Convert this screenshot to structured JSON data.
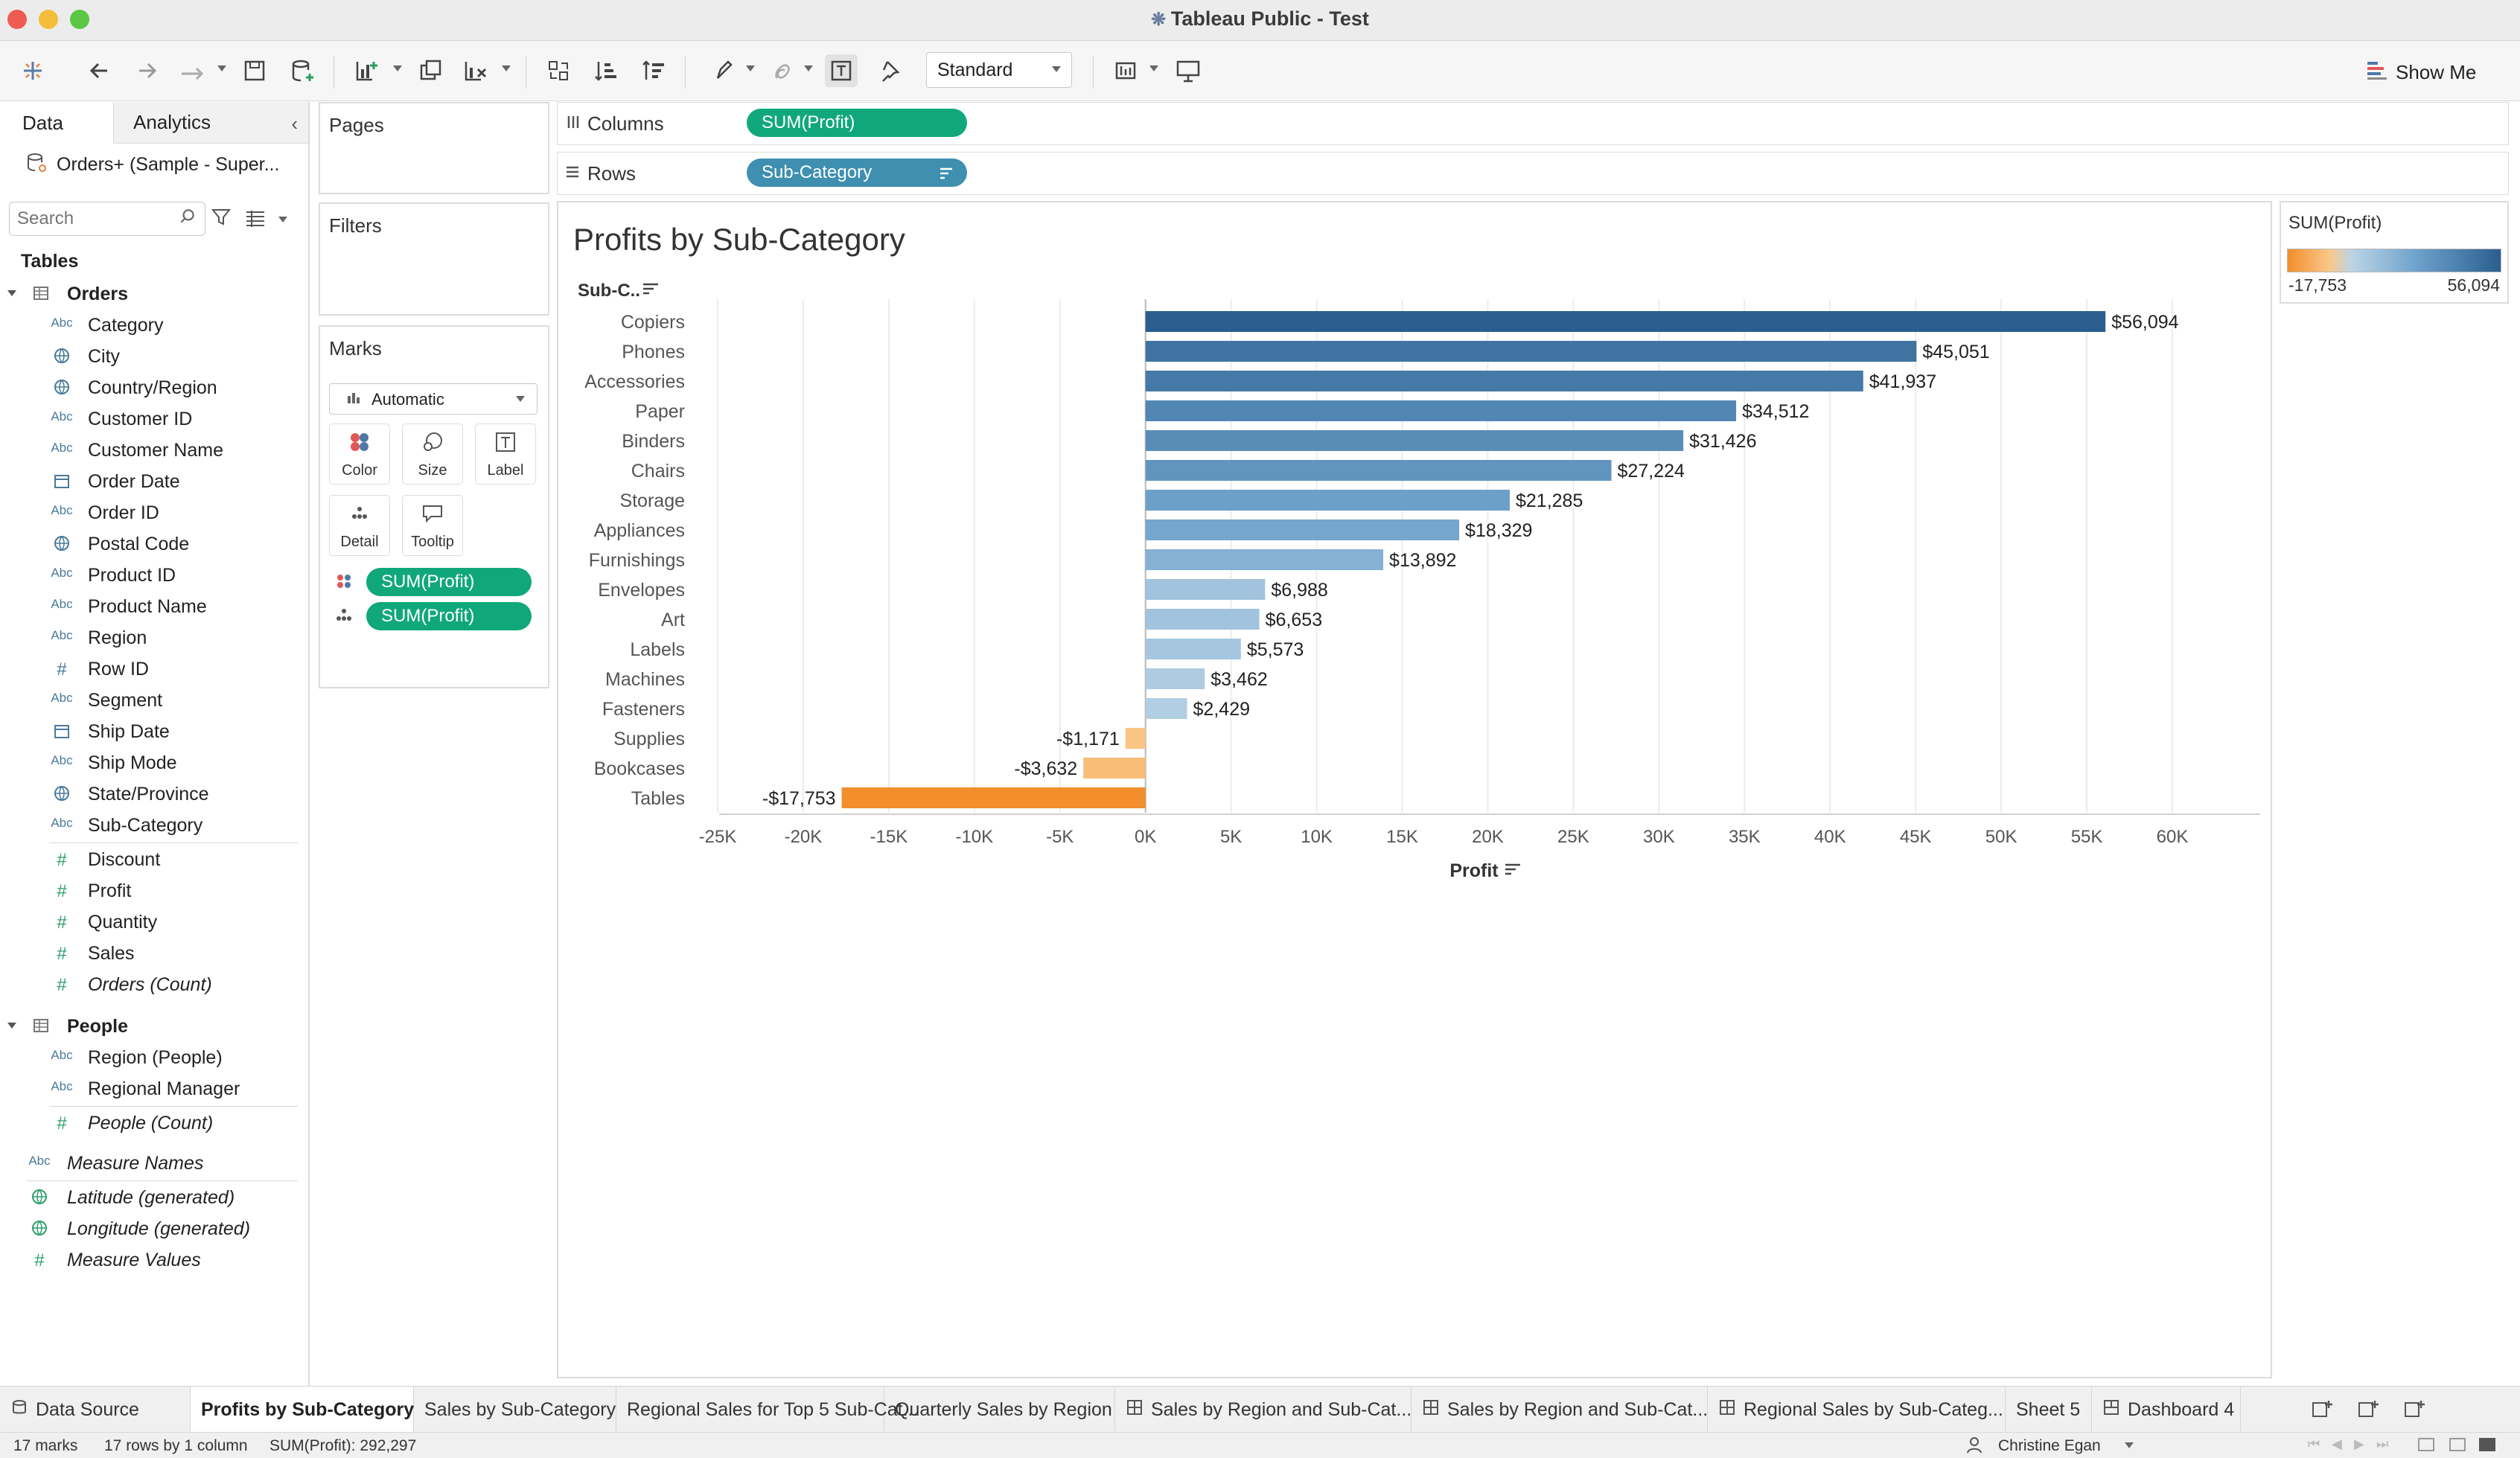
{
  "window": {
    "title": "Tableau Public - Test"
  },
  "toolbar": {
    "mark_size_select": "Standard",
    "show_me_label": "Show Me"
  },
  "left_pane": {
    "tab_data": "Data",
    "tab_analytics": "Analytics",
    "datasource": "Orders+ (Sample - Super...",
    "search_placeholder": "Search",
    "tables_heading": "Tables",
    "orders_table": "Orders",
    "orders_dimensions": [
      {
        "name": "Category",
        "type": "abc"
      },
      {
        "name": "City",
        "type": "geo"
      },
      {
        "name": "Country/Region",
        "type": "geo"
      },
      {
        "name": "Customer ID",
        "type": "abc"
      },
      {
        "name": "Customer Name",
        "type": "abc"
      },
      {
        "name": "Order Date",
        "type": "date"
      },
      {
        "name": "Order ID",
        "type": "abc"
      },
      {
        "name": "Postal Code",
        "type": "geo"
      },
      {
        "name": "Product ID",
        "type": "abc"
      },
      {
        "name": "Product Name",
        "type": "abc"
      },
      {
        "name": "Region",
        "type": "abc"
      },
      {
        "name": "Row ID",
        "type": "num"
      },
      {
        "name": "Segment",
        "type": "abc"
      },
      {
        "name": "Ship Date",
        "type": "date"
      },
      {
        "name": "Ship Mode",
        "type": "abc"
      },
      {
        "name": "State/Province",
        "type": "geo"
      },
      {
        "name": "Sub-Category",
        "type": "abc"
      }
    ],
    "orders_measures": [
      "Discount",
      "Profit",
      "Quantity",
      "Sales"
    ],
    "orders_count": "Orders (Count)",
    "people_table": "People",
    "people_dimensions": [
      "Region (People)",
      "Regional Manager"
    ],
    "people_count": "People (Count)",
    "extra_fields": [
      {
        "name": "Measure Names",
        "type": "abc"
      },
      {
        "name": "Latitude (generated)",
        "type": "geo"
      },
      {
        "name": "Longitude (generated)",
        "type": "geo"
      },
      {
        "name": "Measure Values",
        "type": "num"
      }
    ]
  },
  "cards": {
    "pages": "Pages",
    "filters": "Filters",
    "marks": "Marks",
    "mark_type": "Automatic",
    "buttons": [
      "Color",
      "Size",
      "Label",
      "Detail",
      "Tooltip"
    ],
    "pills": [
      "SUM(Profit)",
      "SUM(Profit)"
    ]
  },
  "shelves": {
    "columns_label": "Columns",
    "columns_pill": "SUM(Profit)",
    "rows_label": "Rows",
    "rows_pill": "Sub-Category"
  },
  "legend": {
    "title": "SUM(Profit)",
    "min_label": "-17,753",
    "max_label": "56,094",
    "colors": [
      "#f28e2b",
      "#f9c98a",
      "#bcd4e6",
      "#6fa3cc",
      "#2a5e8f"
    ]
  },
  "chart_data": {
    "type": "bar",
    "orientation": "horizontal",
    "title": "Profits by Sub-Category",
    "ylabel": "Sub-C..",
    "xlabel": "Profit",
    "xlim": [
      -25000,
      60000
    ],
    "x_ticks": [
      -25000,
      -20000,
      -15000,
      -10000,
      -5000,
      0,
      5000,
      10000,
      15000,
      20000,
      25000,
      30000,
      35000,
      40000,
      45000,
      50000,
      55000,
      60000
    ],
    "x_tick_labels": [
      "-25K",
      "-20K",
      "-15K",
      "-10K",
      "-5K",
      "0K",
      "5K",
      "10K",
      "15K",
      "20K",
      "25K",
      "30K",
      "35K",
      "40K",
      "45K",
      "50K",
      "55K",
      "60K"
    ],
    "categories": [
      "Copiers",
      "Phones",
      "Accessories",
      "Paper",
      "Binders",
      "Chairs",
      "Storage",
      "Appliances",
      "Furnishings",
      "Envelopes",
      "Art",
      "Labels",
      "Machines",
      "Fasteners",
      "Supplies",
      "Bookcases",
      "Tables"
    ],
    "values": [
      56094,
      45051,
      41937,
      34512,
      31426,
      27224,
      21285,
      18329,
      13892,
      6988,
      6653,
      5573,
      3462,
      2429,
      -1171,
      -3632,
      -17753
    ],
    "data_labels": [
      "$56,094",
      "$45,051",
      "$41,937",
      "$34,512",
      "$31,426",
      "$27,224",
      "$21,285",
      "$18,329",
      "$13,892",
      "$6,988",
      "$6,653",
      "$5,573",
      "$3,462",
      "$2,429",
      "-$1,171",
      "-$3,632",
      "-$17,753"
    ],
    "color_by": "SUM(Profit)",
    "grid": "vertical"
  },
  "sheet_tabs": [
    {
      "label": "Data Source"
    },
    {
      "label": "Profits by Sub-Category",
      "active": true
    },
    {
      "label": "Sales by Sub-Category"
    },
    {
      "label": "Regional Sales for Top 5 Sub-Cat..."
    },
    {
      "label": "Quarterly Sales by Region"
    },
    {
      "label": "Sales by Region and Sub-Cat..."
    },
    {
      "label": "Sales by Region and Sub-Cat..."
    },
    {
      "label": "Regional Sales by Sub-Categ..."
    },
    {
      "label": "Sheet 5"
    },
    {
      "label": "Dashboard 4"
    }
  ],
  "status": {
    "marks": "17 marks",
    "rows": "17 rows by 1 column",
    "sum": "SUM(Profit): 292,297",
    "user": "Christine Egan"
  }
}
